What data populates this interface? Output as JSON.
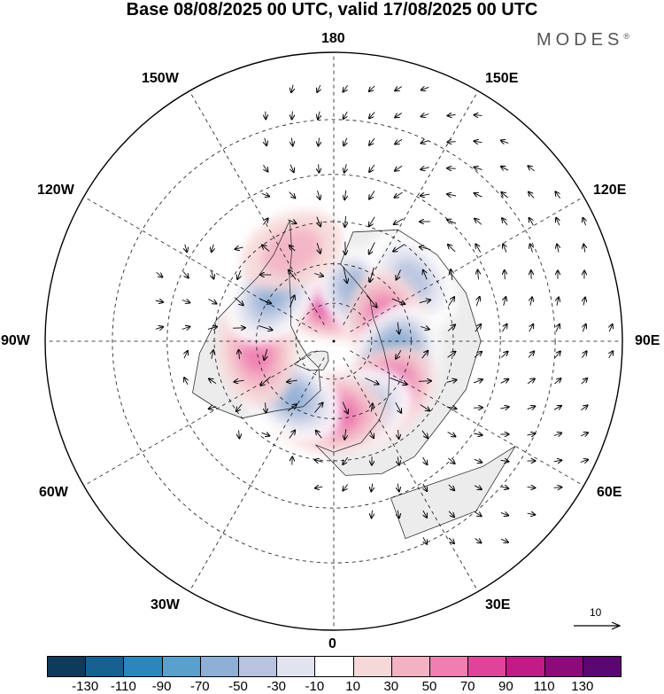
{
  "title": "Base 08/08/2025 00 UTC, valid 17/08/2025 00 UTC",
  "brand": {
    "name": "MODES",
    "mark": "®"
  },
  "longitude_labels": {
    "top": "180",
    "bottom": "0",
    "left": "90W",
    "right": "90E",
    "upper_left_1": "150W",
    "upper_left_2": "120W",
    "upper_right_1": "150E",
    "upper_right_2": "120E",
    "lower_left_1": "60W",
    "lower_left_2": "30W",
    "lower_right_1": "60E",
    "lower_right_2": "30E"
  },
  "reference_vector": {
    "label": "10"
  },
  "colorbar": {
    "ticks": [
      "-130",
      "-110",
      "-90",
      "-70",
      "-50",
      "-30",
      "-10",
      "10",
      "30",
      "50",
      "70",
      "90",
      "110",
      "130"
    ],
    "colors": [
      "#0e3a5c",
      "#16618f",
      "#2d86bb",
      "#5aa0cc",
      "#8eafd6",
      "#b8c3e0",
      "#e1e3ef",
      "#ffffff",
      "#f7d8d8",
      "#f3b2c3",
      "#ee7fb0",
      "#e0439a",
      "#c01b87",
      "#8c0b7b",
      "#5a0673"
    ]
  },
  "colors": {
    "land_fill": "#ececec",
    "coastline": "#333333",
    "grid": "#111111",
    "arrow": "#000000"
  },
  "anomalies": [
    {
      "kind": "pos",
      "lon": 178,
      "colat": 17,
      "amp": 95
    },
    {
      "kind": "neg",
      "lon": 143,
      "colat": 22,
      "amp": -90
    },
    {
      "kind": "neg",
      "lon": 128,
      "colat": 38,
      "amp": -55
    },
    {
      "kind": "pos",
      "lon": 105,
      "colat": 22,
      "amp": 75
    },
    {
      "kind": "neg",
      "lon": 70,
      "colat": 25,
      "amp": -115
    },
    {
      "kind": "pos",
      "lon": 42,
      "colat": 28,
      "amp": 100
    },
    {
      "kind": "neg",
      "lon": 20,
      "colat": 28,
      "amp": -70
    },
    {
      "kind": "pos",
      "lon": 356,
      "colat": 28,
      "amp": 85
    },
    {
      "kind": "neg",
      "lon": 322,
      "colat": 27,
      "amp": -70
    },
    {
      "kind": "pos",
      "lon": 277,
      "colat": 30,
      "amp": 65
    },
    {
      "kind": "neg",
      "lon": 232,
      "colat": 30,
      "amp": -75
    },
    {
      "kind": "pos",
      "lon": 205,
      "colat": 38,
      "amp": 35
    }
  ]
}
